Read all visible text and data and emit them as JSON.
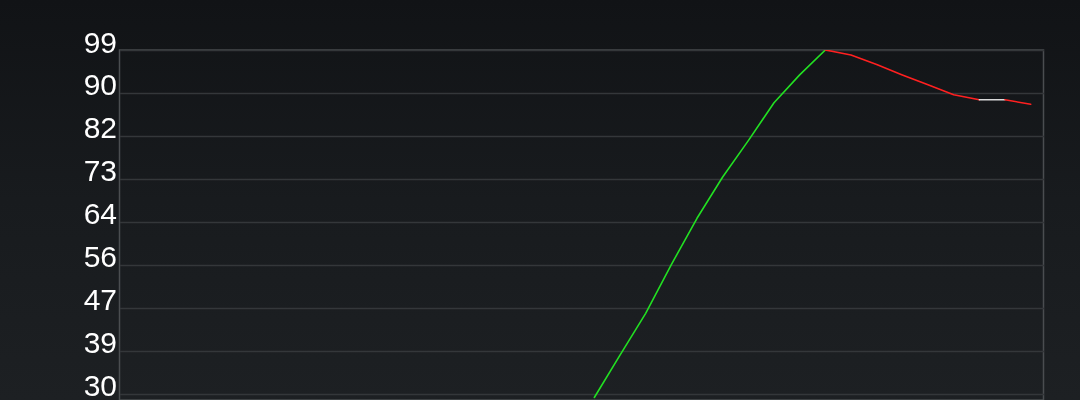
{
  "chart_data": {
    "type": "line",
    "categories": [
      null,
      null,
      null,
      null,
      null,
      null,
      null,
      null,
      null,
      null,
      null,
      null,
      null,
      null,
      null,
      null,
      null,
      null,
      null,
      null,
      null,
      null,
      null,
      null,
      null,
      null,
      null,
      null,
      null,
      null,
      null,
      null,
      null,
      null,
      null,
      null
    ],
    "series": [
      {
        "color": "#22e022",
        "values": [
          null,
          null,
          null,
          null,
          null,
          null,
          null,
          null,
          null,
          null,
          null,
          null,
          null,
          null,
          null,
          null,
          null,
          null,
          29.2,
          37.7,
          46.1,
          55.9,
          65.2,
          73.5,
          80.8,
          88.4,
          94.0,
          99,
          null,
          null,
          null,
          null,
          null,
          null,
          null,
          null
        ]
      },
      {
        "color": "#ff2020",
        "values": [
          null,
          null,
          null,
          null,
          null,
          null,
          null,
          null,
          null,
          null,
          null,
          null,
          null,
          null,
          null,
          null,
          null,
          null,
          null,
          null,
          null,
          null,
          null,
          null,
          null,
          null,
          null,
          99,
          98.0,
          96.1,
          94.0,
          92.0,
          90.0,
          89.0,
          null,
          null
        ]
      },
      {
        "color": "#d9d9d9",
        "values": [
          null,
          null,
          null,
          null,
          null,
          null,
          null,
          null,
          null,
          null,
          null,
          null,
          null,
          null,
          null,
          null,
          null,
          null,
          null,
          null,
          null,
          null,
          null,
          null,
          null,
          null,
          null,
          null,
          null,
          null,
          null,
          null,
          null,
          89.0,
          89.0,
          null
        ]
      },
      {
        "color": "#ff2020",
        "values": [
          null,
          null,
          null,
          null,
          null,
          null,
          null,
          null,
          null,
          null,
          null,
          null,
          null,
          null,
          null,
          null,
          null,
          null,
          null,
          null,
          null,
          null,
          null,
          null,
          null,
          null,
          null,
          null,
          null,
          null,
          null,
          null,
          null,
          null,
          89.0,
          88.1
        ]
      }
    ],
    "ylim": [
      28.7,
      99
    ],
    "yticks": [
      30,
      {
        "value": 38.625,
        "label": "39"
      },
      {
        "value": 47.25,
        "label": "47"
      },
      {
        "value": 55.875,
        "label": "56"
      },
      {
        "value": 64.5,
        "label": "64"
      },
      {
        "value": 73.125,
        "label": "73"
      },
      {
        "value": 81.75,
        "label": "82"
      },
      {
        "value": 90.375,
        "label": "90"
      },
      99
    ],
    "grid": "y",
    "tick_labels": "y",
    "line_style": "solid"
  }
}
